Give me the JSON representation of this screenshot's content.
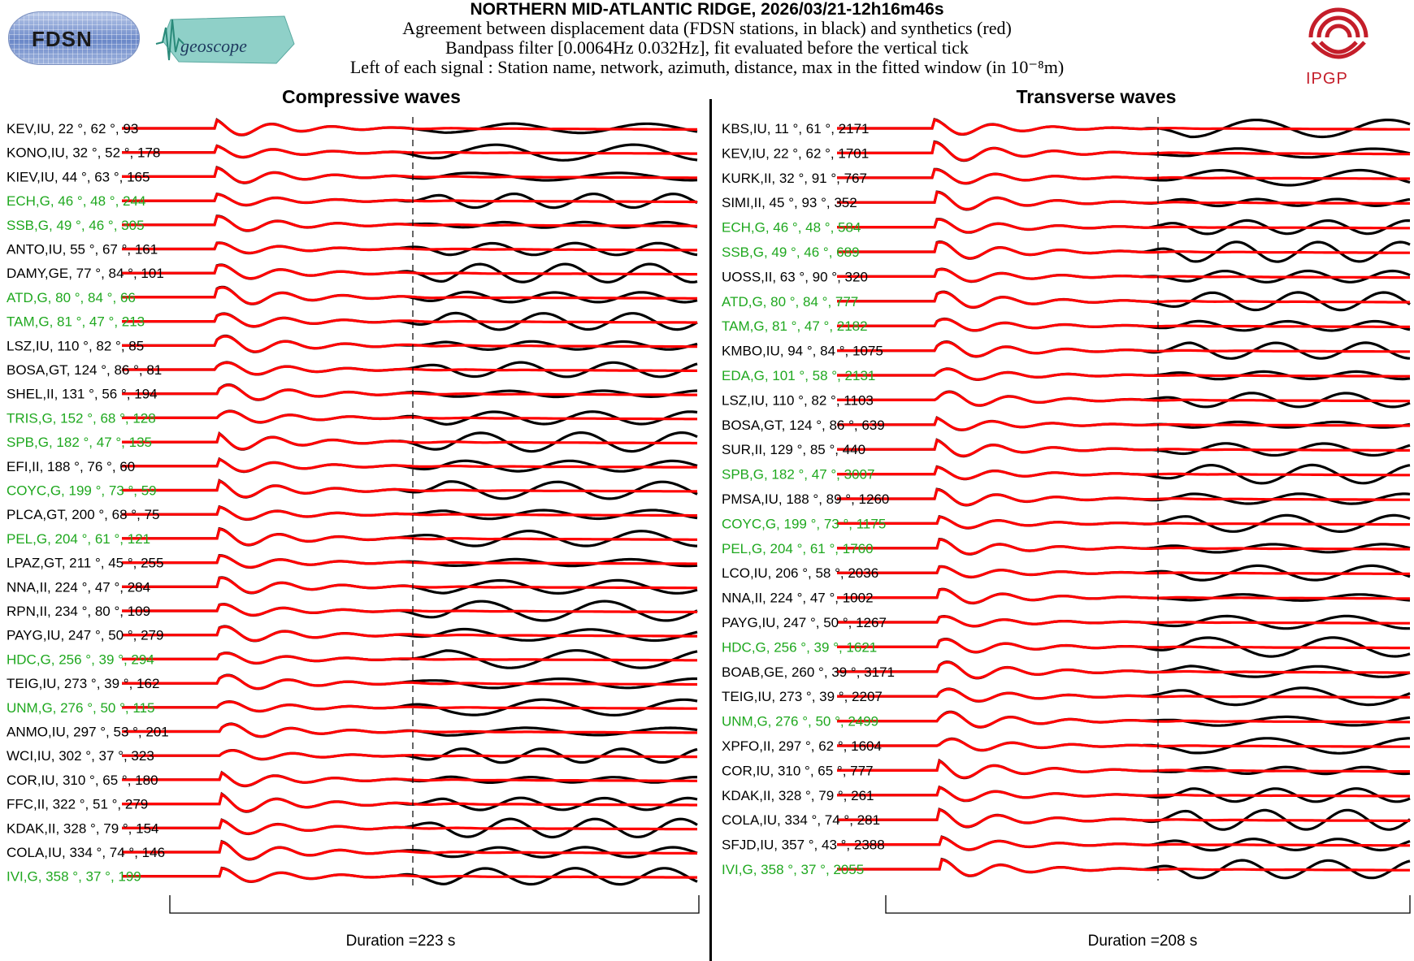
{
  "header": {
    "title": "NORTHERN MID-ATLANTIC RIDGE, 2026/03/21-12h16m46s",
    "line1": "Agreement between displacement data (FDSN stations, in black) and synthetics (red)",
    "line2": "Bandpass filter [0.0064Hz 0.032Hz], fit evaluated before the vertical tick",
    "line3": "Left of each signal : Station name, network, azimuth, distance, max in the fitted window (in 10⁻⁸m)"
  },
  "logos": {
    "fdsn": "FDSN",
    "geoscope": "geoscope",
    "ipgp": "IPGP"
  },
  "colors": {
    "data": "#000000",
    "synthetic": "#ff0000",
    "highlight": "#1fa81f",
    "ipgp": "#c41e2a"
  },
  "chart_data": [
    {
      "type": "line",
      "title": "Compressive waves",
      "duration_label": "Duration =223 s",
      "duration_s": 223,
      "series_legend": [
        "data (black)",
        "synthetics (red)"
      ],
      "stations": [
        {
          "label": "KEV,IU, 22 °, 62 °, 93",
          "highlight": false
        },
        {
          "label": "KONO,IU, 32 °, 52 °, 178",
          "highlight": false
        },
        {
          "label": "KIEV,IU, 44 °, 63 °, 165",
          "highlight": false
        },
        {
          "label": "ECH,G, 46 °, 48 °, 244",
          "highlight": true
        },
        {
          "label": "SSB,G, 49 °, 46 °, 305",
          "highlight": true
        },
        {
          "label": "ANTO,IU, 55 °, 67 °, 161",
          "highlight": false
        },
        {
          "label": "DAMY,GE, 77 °, 84 °, 101",
          "highlight": false
        },
        {
          "label": "ATD,G, 80 °, 84 °, 66",
          "highlight": true
        },
        {
          "label": "TAM,G, 81 °, 47 °, 213",
          "highlight": true
        },
        {
          "label": "LSZ,IU, 110 °, 82 °, 85",
          "highlight": false
        },
        {
          "label": "BOSA,GT, 124 °, 86 °, 81",
          "highlight": false
        },
        {
          "label": "SHEL,II, 131 °, 56 °, 194",
          "highlight": false
        },
        {
          "label": "TRIS,G, 152 °, 68 °, 128",
          "highlight": true
        },
        {
          "label": "SPB,G, 182 °, 47 °, 135",
          "highlight": true
        },
        {
          "label": "EFI,II, 188 °, 76 °, 60",
          "highlight": false
        },
        {
          "label": "COYC,G, 199 °, 73 °, 59",
          "highlight": true
        },
        {
          "label": "PLCA,GT, 200 °, 68 °, 75",
          "highlight": false
        },
        {
          "label": "PEL,G, 204 °, 61 °, 121",
          "highlight": true
        },
        {
          "label": "LPAZ,GT, 211 °, 45 °, 255",
          "highlight": false
        },
        {
          "label": "NNA,II, 224 °, 47 °, 284",
          "highlight": false
        },
        {
          "label": "RPN,II, 234 °, 80 °, 109",
          "highlight": false
        },
        {
          "label": "PAYG,IU, 247 °, 50 °, 279",
          "highlight": false
        },
        {
          "label": "HDC,G, 256 °, 39 °, 294",
          "highlight": true
        },
        {
          "label": "TEIG,IU, 273 °, 39 °, 162",
          "highlight": false
        },
        {
          "label": "UNM,G, 276 °, 50 °, 115",
          "highlight": true
        },
        {
          "label": "ANMO,IU, 297 °, 53 °, 201",
          "highlight": false
        },
        {
          "label": "WCI,IU, 302 °, 37 °, 323",
          "highlight": false
        },
        {
          "label": "COR,IU, 310 °, 65 °, 180",
          "highlight": false
        },
        {
          "label": "FFC,II, 322 °, 51 °, 279",
          "highlight": false
        },
        {
          "label": "KDAK,II, 328 °, 79 °, 154",
          "highlight": false
        },
        {
          "label": "COLA,IU, 334 °, 74 °, 146",
          "highlight": false
        },
        {
          "label": "IVI,G, 358 °, 37 °, 199",
          "highlight": true
        }
      ]
    },
    {
      "type": "line",
      "title": "Transverse waves",
      "duration_label": "Duration =208 s",
      "duration_s": 208,
      "series_legend": [
        "data (black)",
        "synthetics (red)"
      ],
      "stations": [
        {
          "label": "KBS,IU, 11 °, 61 °, 2171",
          "highlight": false
        },
        {
          "label": "KEV,IU, 22 °, 62 °, 1701",
          "highlight": false
        },
        {
          "label": "KURK,II, 32 °, 91 °, 767",
          "highlight": false
        },
        {
          "label": "SIMI,II, 45 °, 93 °, 352",
          "highlight": false
        },
        {
          "label": "ECH,G, 46 °, 48 °, 584",
          "highlight": true
        },
        {
          "label": "SSB,G, 49 °, 46 °, 689",
          "highlight": true
        },
        {
          "label": "UOSS,II, 63 °, 90 °, 320",
          "highlight": false
        },
        {
          "label": "ATD,G, 80 °, 84 °, 777",
          "highlight": true
        },
        {
          "label": "TAM,G, 81 °, 47 °, 2182",
          "highlight": true
        },
        {
          "label": "KMBO,IU, 94 °, 84 °, 1075",
          "highlight": false
        },
        {
          "label": "EDA,G, 101 °, 58 °, 2131",
          "highlight": true
        },
        {
          "label": "LSZ,IU, 110 °, 82 °, 1103",
          "highlight": false
        },
        {
          "label": "BOSA,GT, 124 °, 86 °, 639",
          "highlight": false
        },
        {
          "label": "SUR,II, 129 °, 85 °, 440",
          "highlight": false
        },
        {
          "label": "SPB,G, 182 °, 47 °, 3007",
          "highlight": true
        },
        {
          "label": "PMSA,IU, 188 °, 89 °, 1260",
          "highlight": false
        },
        {
          "label": "COYC,G, 199 °, 73 °, 1175",
          "highlight": true
        },
        {
          "label": "PEL,G, 204 °, 61 °, 1760",
          "highlight": true
        },
        {
          "label": "LCO,IU, 206 °, 58 °, 2036",
          "highlight": false
        },
        {
          "label": "NNA,II, 224 °, 47 °, 1002",
          "highlight": false
        },
        {
          "label": "PAYG,IU, 247 °, 50 °, 1267",
          "highlight": false
        },
        {
          "label": "HDC,G, 256 °, 39 °, 1621",
          "highlight": true
        },
        {
          "label": "BOAB,GE, 260 °, 39 °, 3171",
          "highlight": false
        },
        {
          "label": "TEIG,IU, 273 °, 39 °, 2207",
          "highlight": false
        },
        {
          "label": "UNM,G, 276 °, 50 °, 2499",
          "highlight": true
        },
        {
          "label": "XPFO,II, 297 °, 62 °, 1604",
          "highlight": false
        },
        {
          "label": "COR,IU, 310 °, 65 °, 777",
          "highlight": false
        },
        {
          "label": "KDAK,II, 328 °, 79 °, 261",
          "highlight": false
        },
        {
          "label": "COLA,IU, 334 °, 74 °, 281",
          "highlight": false
        },
        {
          "label": "SFJD,IU, 357 °, 43 °, 2388",
          "highlight": false
        },
        {
          "label": "IVI,G, 358 °, 37 °, 2055",
          "highlight": true
        }
      ]
    }
  ]
}
